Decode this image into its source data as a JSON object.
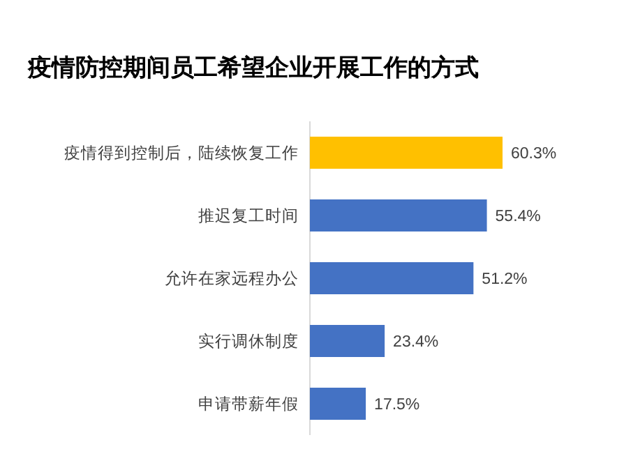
{
  "chart_data": {
    "type": "bar",
    "orientation": "horizontal",
    "title": "疫情防控期间员工希望企业开展工作的方式",
    "categories": [
      "疫情得到控制后，陆续恢复工作",
      "推迟复工时间",
      "允许在家远程办公",
      "实行调休制度",
      "申请带薪年假"
    ],
    "values": [
      60.3,
      55.4,
      51.2,
      23.4,
      17.5
    ],
    "colors": [
      "#ffc000",
      "#4472c4",
      "#4472c4",
      "#4472c4",
      "#4472c4"
    ],
    "value_labels": [
      "60.3%",
      "55.4%",
      "51.2%",
      "23.4%",
      "17.5%"
    ]
  }
}
